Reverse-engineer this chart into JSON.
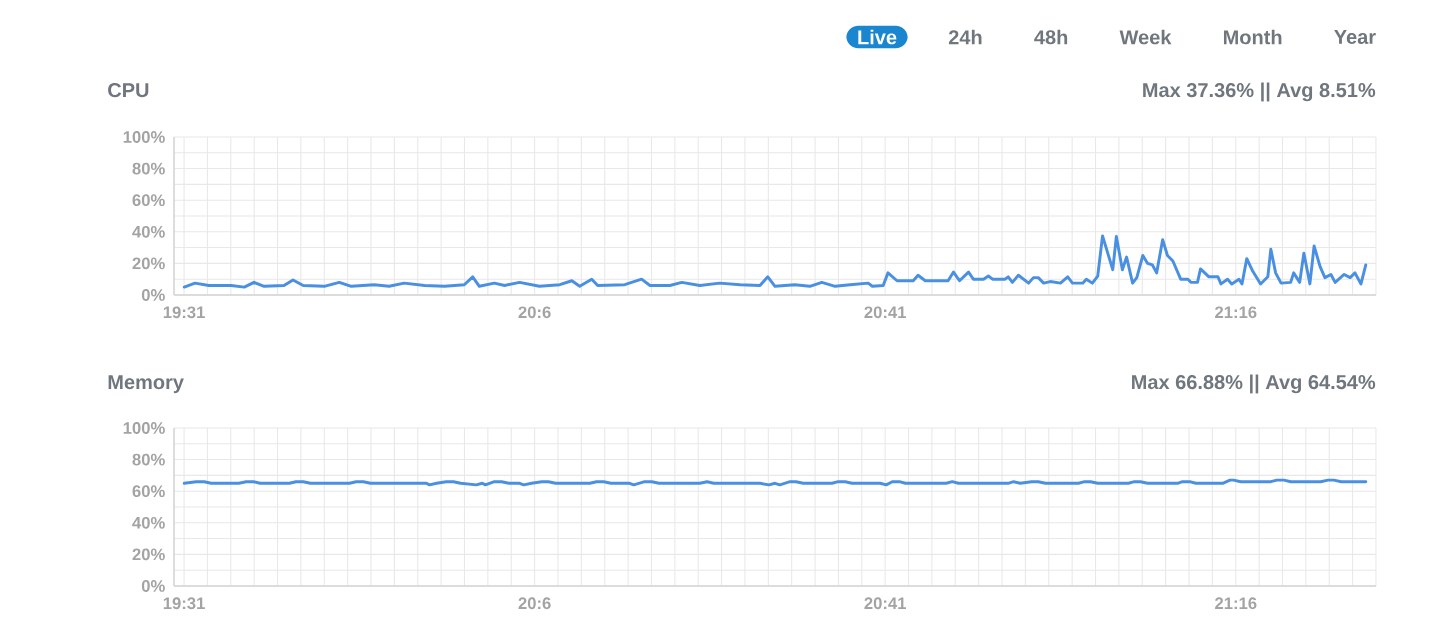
{
  "chart_data": [
    {
      "type": "line",
      "title": "CPU",
      "subtitle": "Max 37.36% || Avg 8.51%",
      "annotations": [
        "Live",
        "24h",
        "48h",
        "Week",
        "Month",
        "Year"
      ],
      "xlim": [
        19.5,
        21.5
      ],
      "xticks": [
        {
          "value": 19.5167,
          "label": "19:31"
        },
        {
          "value": 20.1,
          "label": "20:6"
        },
        {
          "value": 20.6833,
          "label": "20:41"
        },
        {
          "value": 21.2667,
          "label": "21:16"
        }
      ],
      "ylim": [
        0,
        100
      ],
      "yticks": [
        {
          "value": 0,
          "label": "0%"
        },
        {
          "value": 20,
          "label": "20%"
        },
        {
          "value": 40,
          "label": "40%"
        },
        {
          "value": 60,
          "label": "60%"
        },
        {
          "value": 80,
          "label": "80%"
        },
        {
          "value": 100,
          "label": "100%"
        }
      ],
      "grid": true,
      "marker": "none",
      "line_style": "solid",
      "series": [
        {
          "color": "#4a90e2",
          "x": [
            19.517,
            19.535,
            19.558,
            19.595,
            19.617,
            19.633,
            19.65,
            19.683,
            19.698,
            19.715,
            19.75,
            19.775,
            19.795,
            19.833,
            19.858,
            19.883,
            19.917,
            19.95,
            19.983,
            19.997,
            20.008,
            20.033,
            20.05,
            20.075,
            20.108,
            20.142,
            20.162,
            20.175,
            20.195,
            20.205,
            20.25,
            20.278,
            20.292,
            20.325,
            20.345,
            20.375,
            20.408,
            20.442,
            20.475,
            20.488,
            20.5,
            20.533,
            20.558,
            20.578,
            20.6,
            20.625,
            20.655,
            20.662,
            20.68,
            20.688,
            20.703,
            20.73,
            20.738,
            20.75,
            20.772,
            20.788,
            20.797,
            20.807,
            20.822,
            20.83,
            20.847,
            20.855,
            20.862,
            20.883,
            20.888,
            20.895,
            20.905,
            20.922,
            20.93,
            20.938,
            20.947,
            20.958,
            20.975,
            20.987,
            20.995,
            21.012,
            21.018,
            21.028,
            21.037,
            21.045,
            21.062,
            21.068,
            21.078,
            21.085,
            21.095,
            21.102,
            21.112,
            21.12,
            21.128,
            21.135,
            21.145,
            21.153,
            21.162,
            21.175,
            21.187,
            21.192,
            21.203,
            21.208,
            21.222,
            21.237,
            21.242,
            21.253,
            21.26,
            21.272,
            21.277,
            21.285,
            21.295,
            21.308,
            21.32,
            21.325,
            21.333,
            21.342,
            21.358,
            21.363,
            21.373,
            21.38,
            21.39,
            21.397,
            21.407,
            21.415,
            21.425,
            21.432,
            21.447,
            21.457,
            21.465,
            21.475,
            21.483
          ],
          "values": [
            5,
            7.5,
            6,
            6,
            5,
            8,
            5.5,
            6,
            9.5,
            6,
            5.5,
            8,
            5.5,
            6.5,
            5.5,
            7.5,
            6,
            5.5,
            6.5,
            11.5,
            5.5,
            7.5,
            6,
            8,
            5.5,
            6.5,
            9,
            5.5,
            10,
            6,
            6.5,
            10,
            6,
            6,
            8,
            6,
            7.5,
            6.5,
            6,
            11.5,
            5.5,
            6.5,
            5.5,
            8,
            5.5,
            6.5,
            7.5,
            5.5,
            6,
            14,
            9,
            9,
            12.5,
            9,
            9,
            9,
            14.5,
            9,
            14.5,
            10,
            10,
            12,
            10,
            10,
            11.5,
            8,
            12.5,
            7.5,
            11,
            11,
            7.5,
            8.5,
            7.5,
            11.5,
            7.5,
            7.5,
            10,
            7.5,
            12,
            37.4,
            16,
            37,
            16,
            24,
            7.5,
            11,
            25,
            20,
            19,
            14,
            35,
            25,
            21.5,
            10,
            10,
            8,
            8,
            16.5,
            11.5,
            11.5,
            7,
            10,
            7,
            10,
            7,
            23,
            15,
            7,
            11.5,
            29,
            14,
            7.5,
            8,
            14,
            8,
            26.5,
            7,
            31,
            18,
            11,
            13,
            8,
            13,
            11,
            14,
            7,
            19
          ]
        }
      ]
    },
    {
      "type": "line",
      "title": "Memory",
      "subtitle": "Max 66.88% || Avg 64.54%",
      "xlim": [
        19.5,
        21.5
      ],
      "xticks": [
        {
          "value": 19.5167,
          "label": "19:31"
        },
        {
          "value": 20.1,
          "label": "20:6"
        },
        {
          "value": 20.6833,
          "label": "20:41"
        },
        {
          "value": 21.2667,
          "label": "21:16"
        }
      ],
      "ylim": [
        0,
        100
      ],
      "yticks": [
        {
          "value": 0,
          "label": "0%"
        },
        {
          "value": 20,
          "label": "20%"
        },
        {
          "value": 40,
          "label": "40%"
        },
        {
          "value": 60,
          "label": "60%"
        },
        {
          "value": 80,
          "label": "80%"
        },
        {
          "value": 100,
          "label": "100%"
        }
      ],
      "grid": true,
      "marker": "none",
      "line_style": "solid",
      "series": [
        {
          "color": "#4a90e2",
          "x": [
            19.517,
            19.537,
            19.55,
            19.562,
            19.608,
            19.62,
            19.632,
            19.643,
            19.692,
            19.703,
            19.715,
            19.727,
            19.792,
            19.803,
            19.815,
            19.827,
            19.92,
            19.925,
            19.937,
            19.953,
            19.965,
            19.977,
            20.003,
            20.013,
            20.018,
            20.033,
            20.045,
            20.057,
            20.075,
            20.082,
            20.095,
            20.112,
            20.123,
            20.135,
            20.192,
            20.203,
            20.215,
            20.227,
            20.258,
            20.265,
            20.283,
            20.295,
            20.307,
            20.375,
            20.387,
            20.398,
            20.475,
            20.49,
            20.5,
            20.508,
            20.525,
            20.535,
            20.547,
            20.595,
            20.605,
            20.617,
            20.628,
            20.675,
            20.685,
            20.695,
            20.707,
            20.717,
            20.785,
            20.795,
            20.805,
            20.888,
            20.897,
            20.908,
            20.927,
            20.938,
            20.95,
            21.005,
            21.015,
            21.025,
            21.037,
            21.088,
            21.098,
            21.108,
            21.12,
            21.17,
            21.178,
            21.19,
            21.2,
            21.245,
            21.257,
            21.263,
            21.275,
            21.325,
            21.335,
            21.347,
            21.358,
            21.408,
            21.42,
            21.43,
            21.442,
            21.483
          ],
          "values": [
            65,
            66,
            66,
            65,
            65,
            66,
            66,
            65,
            65,
            66,
            66,
            65,
            65,
            66,
            66,
            65,
            65,
            64,
            65,
            66,
            66,
            65,
            64,
            65,
            64,
            66,
            66,
            65,
            65,
            64,
            65,
            66,
            66,
            65,
            65,
            66,
            66,
            65,
            65,
            64,
            66,
            66,
            65,
            65,
            66,
            65,
            65,
            64,
            65,
            64,
            66,
            66,
            65,
            65,
            66,
            66,
            65,
            65,
            64,
            66,
            66,
            65,
            65,
            66,
            65,
            65,
            66,
            65,
            66,
            66,
            65,
            65,
            66,
            66,
            65,
            65,
            66,
            66,
            65,
            65,
            66,
            66,
            65,
            65,
            67,
            67,
            66,
            66,
            67,
            67,
            66,
            66,
            67,
            67,
            66,
            66
          ]
        }
      ]
    }
  ]
}
